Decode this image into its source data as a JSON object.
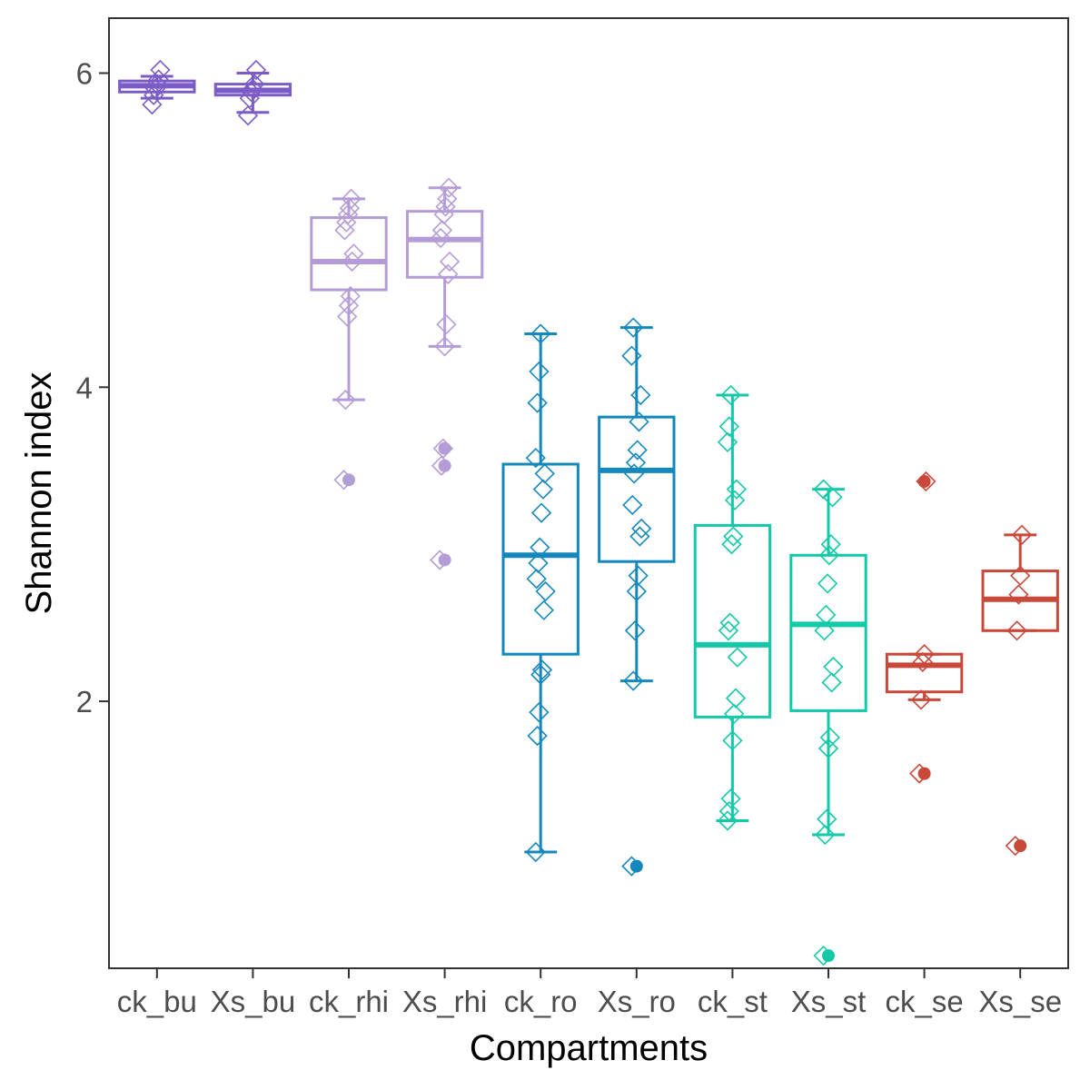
{
  "chart_data": {
    "type": "boxplot",
    "title": "",
    "xlabel": "Compartments",
    "ylabel": "Shannon index",
    "ylim": [
      0.3,
      6.35
    ],
    "yticks": [
      2,
      4,
      6
    ],
    "grid": false,
    "legend": "none",
    "categories": [
      "ck_bu",
      "Xs_bu",
      "ck_rhi",
      "Xs_rhi",
      "ck_ro",
      "Xs_ro",
      "ck_st",
      "Xs_st",
      "ck_se",
      "Xs_se"
    ],
    "colors": [
      "#7b5cc6",
      "#7b5cc6",
      "#b49dd6",
      "#b49dd6",
      "#1488bd",
      "#1488bd",
      "#12c9a8",
      "#12c9a8",
      "#c9483a",
      "#c9483a"
    ],
    "boxes": [
      {
        "name": "ck_bu",
        "whisker_low": 5.84,
        "q1": 5.88,
        "median": 5.92,
        "q3": 5.95,
        "whisker_high": 5.98,
        "outliers": [],
        "points": [
          5.8,
          5.86,
          5.9,
          5.93,
          5.96,
          6.02
        ]
      },
      {
        "name": "Xs_bu",
        "whisker_low": 5.75,
        "q1": 5.86,
        "median": 5.89,
        "q3": 5.93,
        "whisker_high": 6.0,
        "outliers": [],
        "points": [
          5.73,
          5.84,
          5.88,
          5.9,
          5.93,
          6.02
        ]
      },
      {
        "name": "ck_rhi",
        "whisker_low": 3.92,
        "q1": 4.62,
        "median": 4.8,
        "q3": 5.08,
        "whisker_high": 5.2,
        "outliers": [
          3.41
        ],
        "points": [
          3.41,
          3.92,
          4.45,
          4.52,
          4.58,
          4.8,
          4.85,
          5.0,
          5.05,
          5.1,
          5.14,
          5.2
        ]
      },
      {
        "name": "Xs_rhi",
        "whisker_low": 4.26,
        "q1": 4.7,
        "median": 4.94,
        "q3": 5.12,
        "whisker_high": 5.27,
        "outliers": [
          3.61,
          3.5,
          2.9
        ],
        "points": [
          2.9,
          3.5,
          3.61,
          4.26,
          4.4,
          4.72,
          4.8,
          4.95,
          5.0,
          5.1,
          5.15,
          5.2,
          5.27
        ]
      },
      {
        "name": "ck_ro",
        "whisker_low": 1.04,
        "q1": 2.3,
        "median": 2.93,
        "q3": 3.51,
        "whisker_high": 4.34,
        "outliers": [],
        "points": [
          1.04,
          1.78,
          1.93,
          2.17,
          2.2,
          2.58,
          2.7,
          2.78,
          2.88,
          2.98,
          3.2,
          3.35,
          3.45,
          3.55,
          3.9,
          4.1,
          4.34
        ]
      },
      {
        "name": "Xs_ro",
        "whisker_low": 2.13,
        "q1": 2.89,
        "median": 3.47,
        "q3": 3.81,
        "whisker_high": 4.38,
        "outliers": [
          0.95
        ],
        "points": [
          0.95,
          2.13,
          2.45,
          2.7,
          2.8,
          3.05,
          3.1,
          3.25,
          3.45,
          3.52,
          3.6,
          3.78,
          3.95,
          4.2,
          4.38
        ]
      },
      {
        "name": "ck_st",
        "whisker_low": 1.24,
        "q1": 1.9,
        "median": 2.36,
        "q3": 3.12,
        "whisker_high": 3.95,
        "outliers": [],
        "points": [
          1.24,
          1.3,
          1.38,
          1.75,
          1.92,
          2.02,
          2.28,
          2.45,
          2.5,
          3.0,
          3.05,
          3.28,
          3.35,
          3.65,
          3.75,
          3.95
        ]
      },
      {
        "name": "Xs_st",
        "whisker_low": 1.15,
        "q1": 1.94,
        "median": 2.49,
        "q3": 2.93,
        "whisker_high": 3.35,
        "outliers": [
          0.38
        ],
        "points": [
          0.38,
          1.15,
          1.25,
          1.7,
          1.77,
          2.12,
          2.22,
          2.45,
          2.55,
          2.75,
          2.93,
          3.0,
          3.3,
          3.35
        ]
      },
      {
        "name": "ck_se",
        "whisker_low": 2.01,
        "q1": 2.06,
        "median": 2.23,
        "q3": 2.3,
        "whisker_high": 2.3,
        "outliers": [
          3.4,
          1.54
        ],
        "points": [
          1.54,
          2.01,
          2.25,
          2.3,
          3.4
        ]
      },
      {
        "name": "Xs_se",
        "whisker_low": 2.45,
        "q1": 2.45,
        "median": 2.65,
        "q3": 2.83,
        "whisker_high": 3.06,
        "outliers": [
          1.08
        ],
        "points": [
          1.08,
          2.45,
          2.68,
          2.8,
          3.06
        ]
      }
    ]
  }
}
